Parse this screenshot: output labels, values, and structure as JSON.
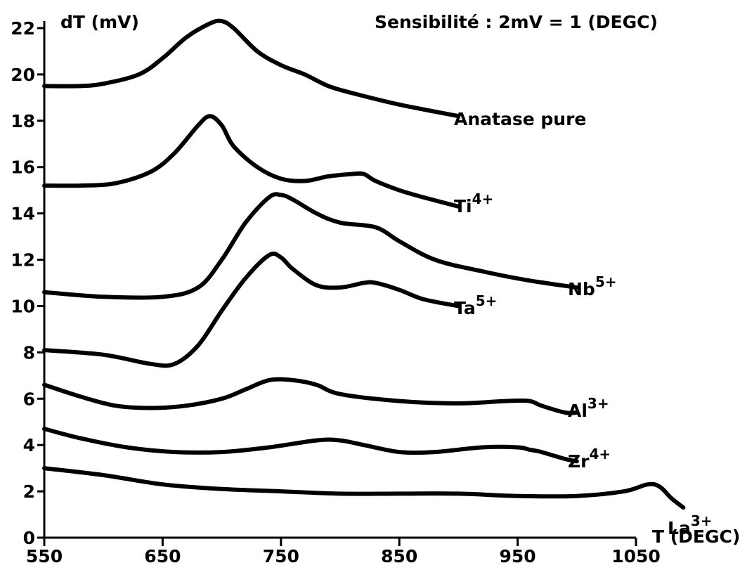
{
  "chart_data": {
    "type": "line",
    "title": "",
    "annotation": "Sensibilité : 2mV = 1 (DEGC)",
    "ylabel": "dT (mV)",
    "xlabel": "T (DEGC)",
    "xlim": [
      550,
      1100
    ],
    "ylim": [
      0,
      23
    ],
    "xticks": [
      550,
      650,
      750,
      850,
      950,
      1050
    ],
    "yticks": [
      0,
      2,
      4,
      6,
      8,
      10,
      12,
      14,
      16,
      18,
      20,
      22
    ],
    "grid": false,
    "series": [
      {
        "name": "Anatase pure",
        "base": "Anatase pure",
        "sup": "",
        "x": [
          550,
          580,
          600,
          630,
          650,
          670,
          690,
          700,
          710,
          730,
          750,
          770,
          790,
          810,
          850,
          900
        ],
        "y": [
          19.5,
          19.5,
          19.6,
          20.0,
          20.7,
          21.6,
          22.2,
          22.3,
          22.0,
          21.0,
          20.4,
          20.0,
          19.5,
          19.2,
          18.7,
          18.2
        ]
      },
      {
        "name": "Ti4+",
        "base": "Ti",
        "sup": "4+",
        "x": [
          550,
          580,
          610,
          640,
          660,
          680,
          690,
          700,
          710,
          730,
          750,
          770,
          790,
          810,
          820,
          830,
          850,
          870,
          900
        ],
        "y": [
          15.2,
          15.2,
          15.3,
          15.8,
          16.6,
          17.8,
          18.2,
          17.8,
          16.9,
          16.0,
          15.5,
          15.4,
          15.6,
          15.7,
          15.7,
          15.4,
          15.0,
          14.7,
          14.3
        ]
      },
      {
        "name": "Nb5+",
        "base": "Nb",
        "sup": "5+",
        "x": [
          550,
          600,
          650,
          680,
          700,
          720,
          740,
          750,
          760,
          780,
          800,
          830,
          850,
          880,
          920,
          960,
          1000
        ],
        "y": [
          10.6,
          10.4,
          10.4,
          10.8,
          12.0,
          13.6,
          14.7,
          14.8,
          14.6,
          14.0,
          13.6,
          13.4,
          12.8,
          12.0,
          11.5,
          11.1,
          10.8
        ]
      },
      {
        "name": "Ta5+",
        "base": "Ta",
        "sup": "5+",
        "x": [
          550,
          600,
          640,
          660,
          680,
          700,
          720,
          740,
          750,
          760,
          780,
          800,
          820,
          830,
          850,
          870,
          900
        ],
        "y": [
          8.1,
          7.9,
          7.5,
          7.5,
          8.3,
          9.8,
          11.2,
          12.2,
          12.1,
          11.6,
          10.9,
          10.8,
          11.0,
          11.0,
          10.7,
          10.3,
          10.0
        ]
      },
      {
        "name": "Al3+",
        "base": "Al",
        "sup": "3+",
        "x": [
          550,
          580,
          610,
          640,
          670,
          700,
          720,
          740,
          760,
          780,
          800,
          850,
          900,
          940,
          960,
          970,
          990,
          1000
        ],
        "y": [
          6.6,
          6.1,
          5.7,
          5.6,
          5.7,
          6.0,
          6.4,
          6.8,
          6.8,
          6.6,
          6.2,
          5.9,
          5.8,
          5.9,
          5.9,
          5.7,
          5.4,
          5.4
        ]
      },
      {
        "name": "Zr4+",
        "base": "Zr",
        "sup": "4+",
        "x": [
          550,
          580,
          620,
          660,
          700,
          740,
          780,
          800,
          820,
          850,
          880,
          920,
          950,
          960,
          970,
          990,
          1000
        ],
        "y": [
          4.7,
          4.3,
          3.9,
          3.7,
          3.7,
          3.9,
          4.2,
          4.2,
          4.0,
          3.7,
          3.7,
          3.9,
          3.9,
          3.8,
          3.7,
          3.4,
          3.3
        ]
      },
      {
        "name": "La3+",
        "base": "La",
        "sup": "3+",
        "x": [
          550,
          600,
          650,
          700,
          750,
          800,
          850,
          900,
          950,
          1000,
          1040,
          1060,
          1070,
          1080,
          1090
        ],
        "y": [
          3.0,
          2.7,
          2.3,
          2.1,
          2.0,
          1.9,
          1.9,
          1.9,
          1.8,
          1.8,
          2.0,
          2.3,
          2.2,
          1.7,
          1.3
        ]
      }
    ]
  }
}
